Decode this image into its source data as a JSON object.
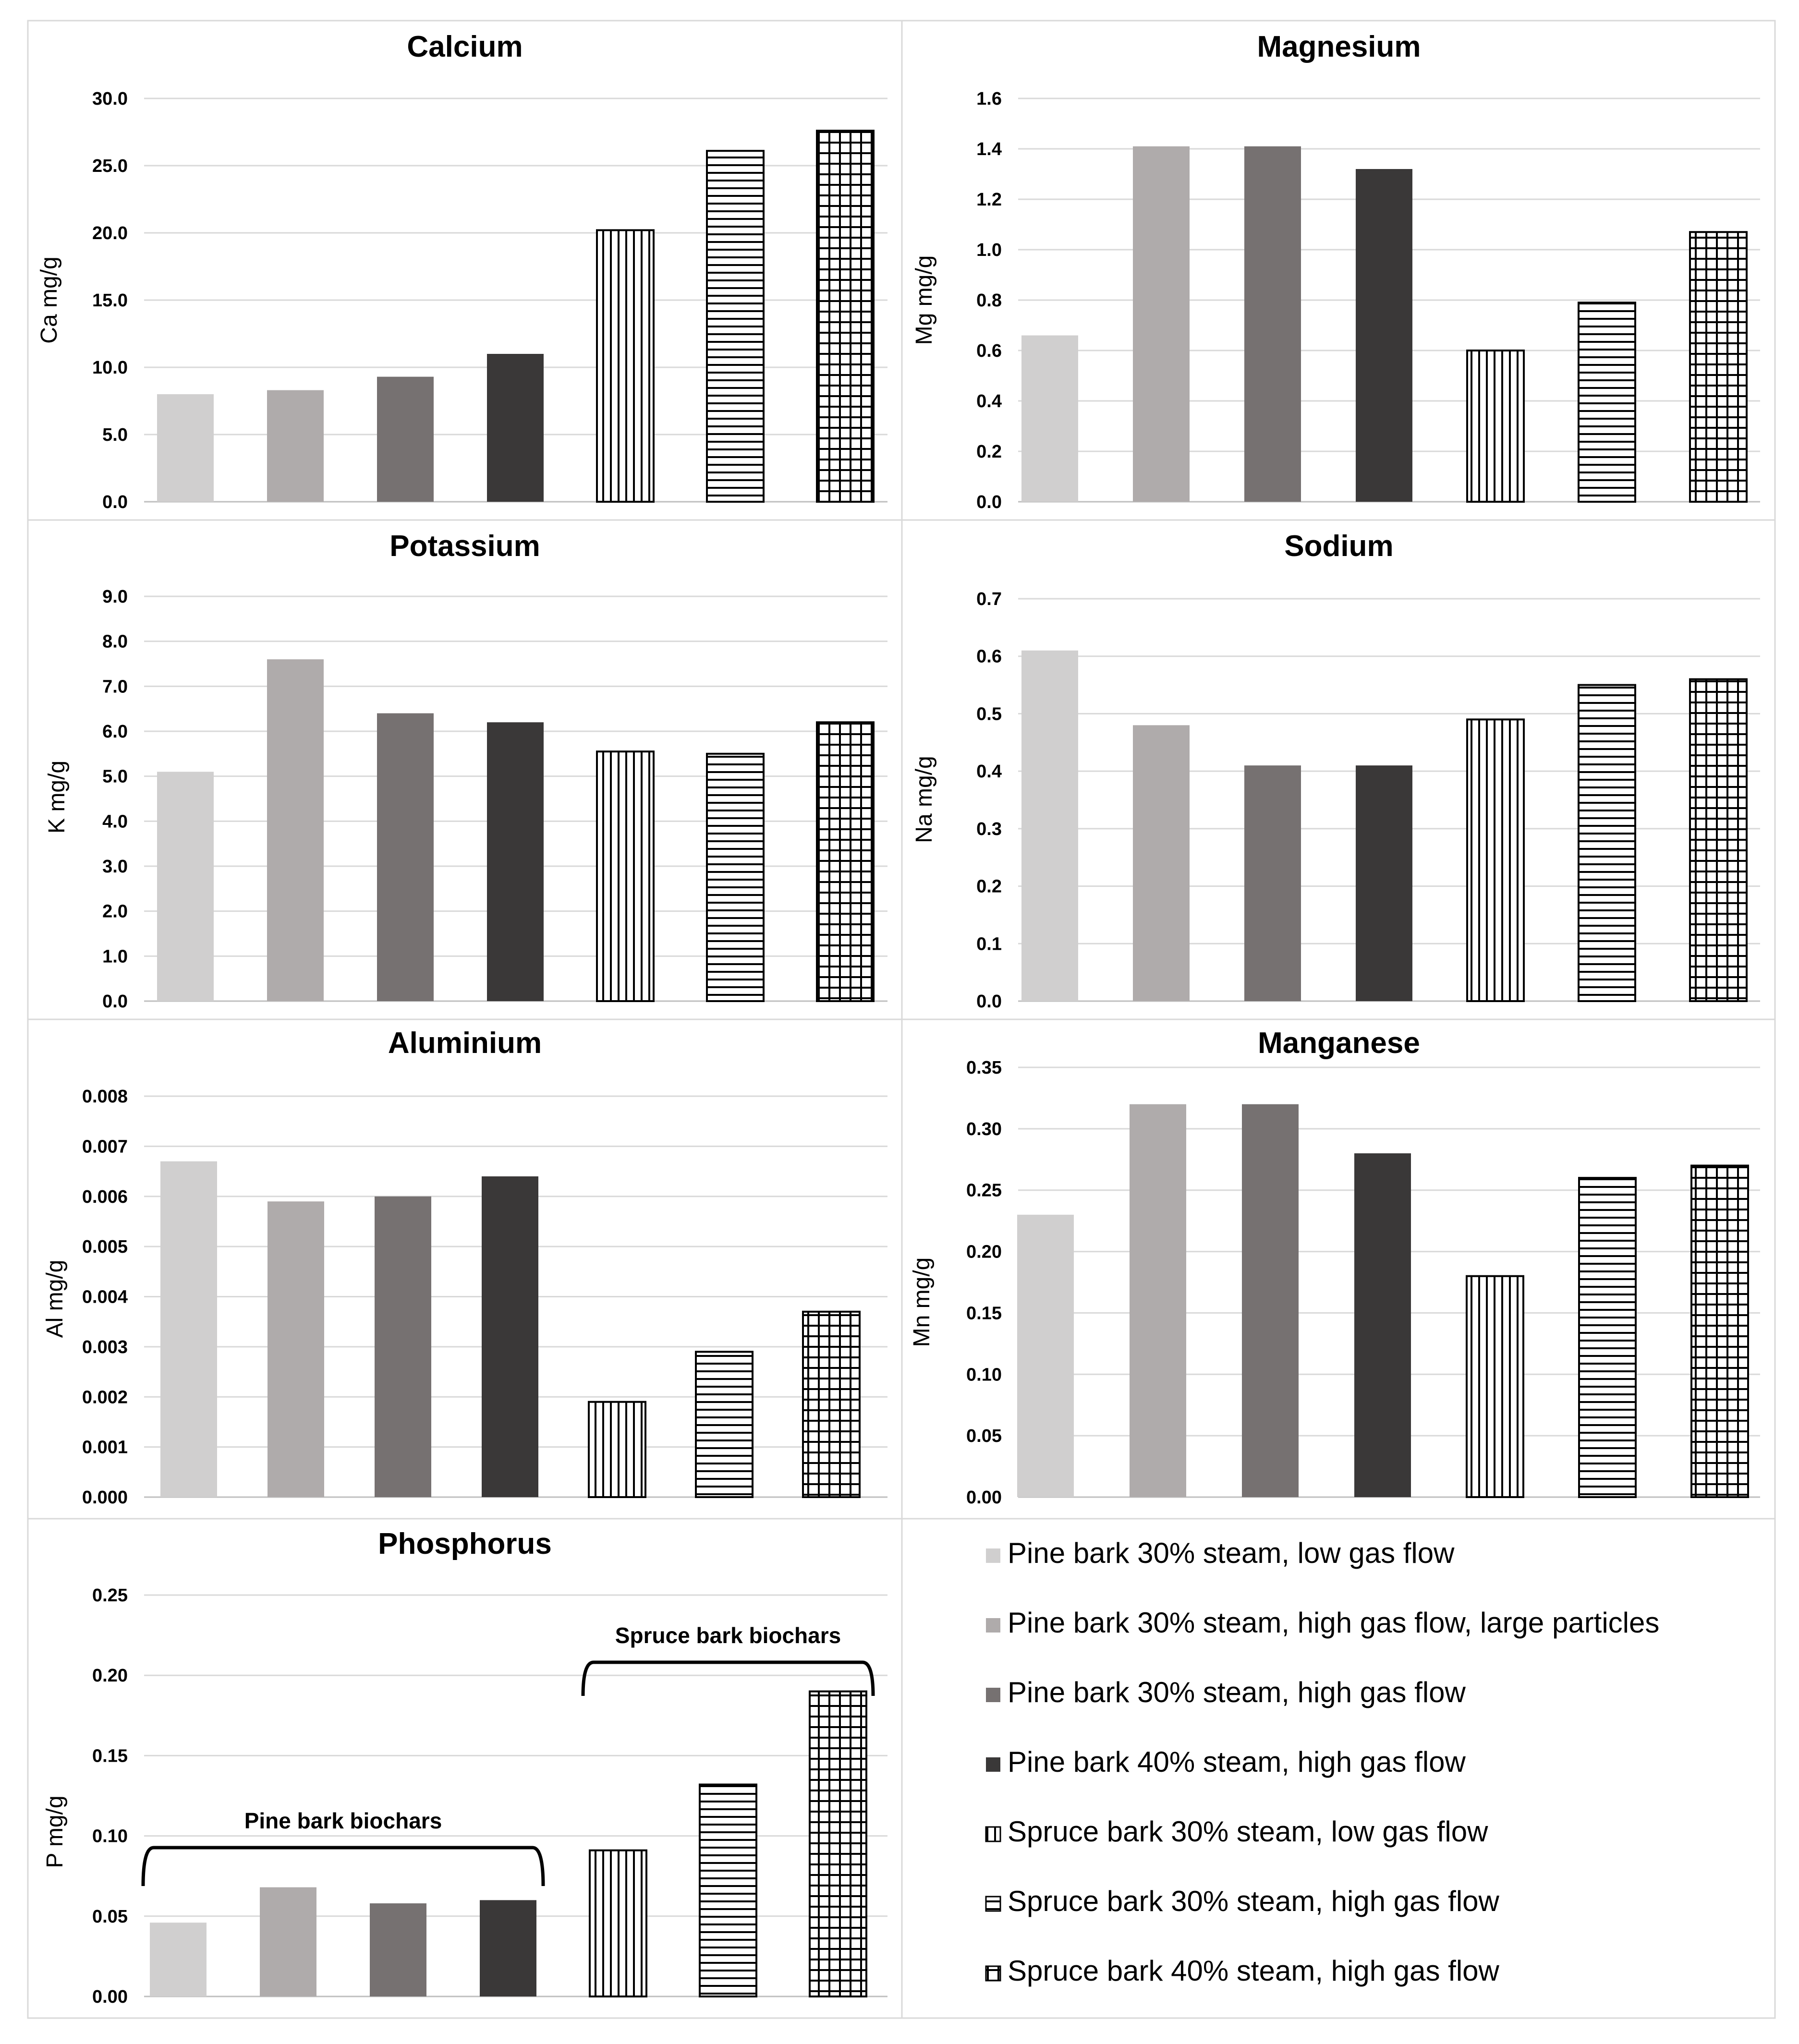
{
  "series_legend": [
    {
      "name": "Pine bark 30% steam, low gas flow",
      "color": "#d0cfcf",
      "pattern": "solid"
    },
    {
      "name": "Pine bark 30% steam, high gas flow, large particles",
      "color": "#afabab",
      "pattern": "solid"
    },
    {
      "name": "Pine bark 30% steam, high gas flow",
      "color": "#767171",
      "pattern": "solid"
    },
    {
      "name": "Pine bark 40% steam, high gas flow",
      "color": "#3a3838",
      "pattern": "solid"
    },
    {
      "name": "Spruce bark 30% steam, low gas flow",
      "color": "#000000",
      "pattern": "vertical"
    },
    {
      "name": "Spruce bark 30% steam, high gas flow",
      "color": "#000000",
      "pattern": "horizontal"
    },
    {
      "name": "Spruce bark 40% steam, high gas flow",
      "color": "#000000",
      "pattern": "grid"
    }
  ],
  "chart_data": [
    {
      "type": "bar",
      "title": "Calcium",
      "ylabel": "Ca mg/g",
      "ylim": [
        0,
        30
      ],
      "ticks": [
        "0.0",
        "5.0",
        "10.0",
        "15.0",
        "20.0",
        "25.0",
        "30.0"
      ],
      "values": [
        8.0,
        8.3,
        9.3,
        11.0,
        20.2,
        26.1,
        27.6
      ]
    },
    {
      "type": "bar",
      "title": "Magnesium",
      "ylabel": "Mg  mg/g",
      "ylim": [
        0,
        1.6
      ],
      "ticks": [
        "0.0",
        "0.2",
        "0.4",
        "0.6",
        "0.8",
        "1.0",
        "1.2",
        "1.4",
        "1.6"
      ],
      "values": [
        0.66,
        1.41,
        1.41,
        1.32,
        0.6,
        0.79,
        1.07
      ]
    },
    {
      "type": "bar",
      "title": "Potassium",
      "ylabel": "K mg/g",
      "ylim": [
        0,
        9
      ],
      "ticks": [
        "0.0",
        "1.0",
        "2.0",
        "3.0",
        "4.0",
        "5.0",
        "6.0",
        "7.0",
        "8.0",
        "9.0"
      ],
      "values": [
        5.1,
        7.6,
        6.4,
        6.2,
        5.55,
        5.5,
        6.2
      ]
    },
    {
      "type": "bar",
      "title": "Sodium",
      "ylabel": "Na mg/g",
      "ylim": [
        0,
        0.7
      ],
      "ticks": [
        "0.0",
        "0.1",
        "0.2",
        "0.3",
        "0.4",
        "0.5",
        "0.6",
        "0.7"
      ],
      "values": [
        0.61,
        0.48,
        0.41,
        0.41,
        0.49,
        0.55,
        0.56
      ]
    },
    {
      "type": "bar",
      "title": "Aluminium",
      "ylabel": "Al mg/g",
      "ylim": [
        0,
        0.008
      ],
      "ticks": [
        "0.000",
        "0.001",
        "0.002",
        "0.003",
        "0.004",
        "0.005",
        "0.006",
        "0.007",
        "0.008"
      ],
      "values": [
        0.0067,
        0.0059,
        0.006,
        0.0064,
        0.0019,
        0.0029,
        0.0037
      ]
    },
    {
      "type": "bar",
      "title": "Manganese",
      "ylabel": "Mn mg/g",
      "ylim": [
        0,
        0.35
      ],
      "ticks": [
        "0.00",
        "0.05",
        "0.10",
        "0.15",
        "0.20",
        "0.25",
        "0.30",
        "0.35"
      ],
      "values": [
        0.23,
        0.32,
        0.32,
        0.28,
        0.18,
        0.26,
        0.27
      ]
    },
    {
      "type": "bar",
      "title": "Phosphorus",
      "ylabel": "P  mg/g",
      "ylim": [
        0,
        0.25
      ],
      "ticks": [
        "0.00",
        "0.05",
        "0.10",
        "0.15",
        "0.20",
        "0.25"
      ],
      "values": [
        0.046,
        0.068,
        0.058,
        0.06,
        0.091,
        0.132,
        0.19
      ],
      "annotations": [
        {
          "text": "Pine bark biochars",
          "bars": [
            0,
            3
          ]
        },
        {
          "text": "Spruce bark biochars",
          "bars": [
            4,
            6
          ]
        }
      ]
    }
  ]
}
